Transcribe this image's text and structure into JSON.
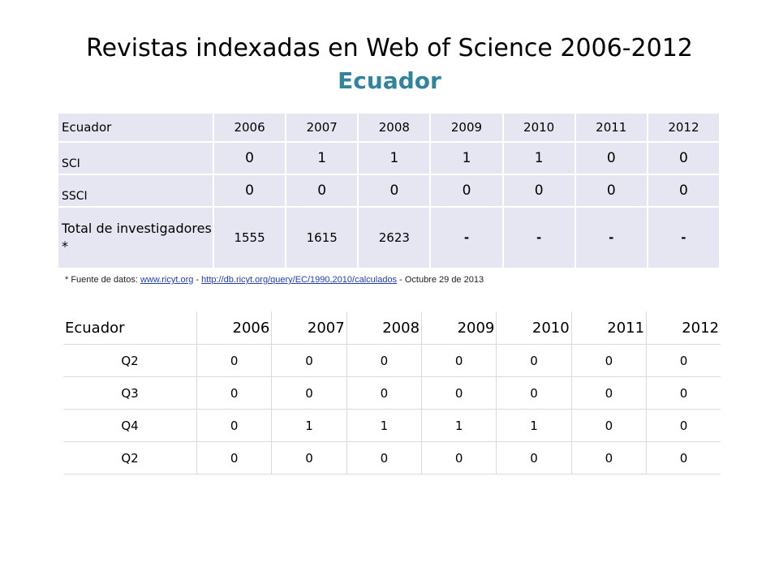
{
  "title": {
    "main": "Revistas indexadas en Web of Science 2006-2012",
    "sub": "Ecuador"
  },
  "table1": {
    "header": [
      "Ecuador",
      "2006",
      "2007",
      "2008",
      "2009",
      "2010",
      "2011",
      "2012"
    ],
    "rows": [
      {
        "label": "SCI",
        "values": [
          "0",
          "1",
          "1",
          "1",
          "1",
          "0",
          "0"
        ]
      },
      {
        "label": "SSCI",
        "values": [
          "0",
          "0",
          "0",
          "0",
          "0",
          "0",
          "0"
        ]
      },
      {
        "label": "Total de investigadores *",
        "values": [
          "1555",
          "1615",
          "2623",
          "-",
          "-",
          "-",
          "-"
        ]
      }
    ]
  },
  "note": {
    "prefix": "* Fuente de datos: ",
    "link1": "www.ricyt.org",
    "sep": " - ",
    "link2": "http://db.ricyt.org/query/EC/1990,2010/calculados",
    "suffix": " - Octubre 29 de 2013"
  },
  "table2": {
    "header": [
      "Ecuador",
      "2006",
      "2007",
      "2008",
      "2009",
      "2010",
      "2011",
      "2012"
    ],
    "rows": [
      {
        "label": "Q2",
        "values": [
          "0",
          "0",
          "0",
          "0",
          "0",
          "0",
          "0"
        ]
      },
      {
        "label": "Q3",
        "values": [
          "0",
          "0",
          "0",
          "0",
          "0",
          "0",
          "0"
        ]
      },
      {
        "label": "Q4",
        "values": [
          "0",
          "1",
          "1",
          "1",
          "1",
          "0",
          "0"
        ]
      },
      {
        "label": "Q2",
        "values": [
          "0",
          "0",
          "0",
          "0",
          "0",
          "0",
          "0"
        ]
      }
    ]
  }
}
